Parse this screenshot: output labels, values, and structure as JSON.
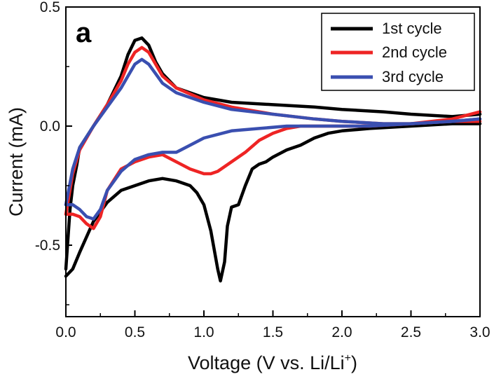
{
  "panel_label": "a",
  "chart_data": {
    "type": "line",
    "xlabel": "Voltage (V vs. Li/Li+)",
    "xlabel_main": "Voltage (V vs. Li/Li",
    "xlabel_sup": "+",
    "xlabel_tail": ")",
    "ylabel": "Current (mA)",
    "xlim": [
      0.0,
      3.0
    ],
    "ylim": [
      -0.8,
      0.5
    ],
    "xticks": [
      "0.0",
      "0.5",
      "1.0",
      "1.5",
      "2.0",
      "2.5",
      "3.0"
    ],
    "xtick_values": [
      0.0,
      0.5,
      1.0,
      1.5,
      2.0,
      2.5,
      3.0
    ],
    "yticks": [
      "-0.5",
      "0.0",
      "0.5"
    ],
    "ytick_values": [
      -0.5,
      0.0,
      0.5
    ],
    "grid": false,
    "legend_position": "top-right",
    "series": [
      {
        "name": "1st cycle",
        "color": "#000000",
        "cathodic": [
          [
            3.0,
            0.01
          ],
          [
            2.8,
            0.01
          ],
          [
            2.5,
            0.0
          ],
          [
            2.2,
            -0.01
          ],
          [
            2.0,
            -0.02
          ],
          [
            1.9,
            -0.03
          ],
          [
            1.8,
            -0.05
          ],
          [
            1.7,
            -0.08
          ],
          [
            1.6,
            -0.1
          ],
          [
            1.5,
            -0.13
          ],
          [
            1.45,
            -0.15
          ],
          [
            1.4,
            -0.16
          ],
          [
            1.35,
            -0.18
          ],
          [
            1.3,
            -0.25
          ],
          [
            1.25,
            -0.33
          ],
          [
            1.2,
            -0.34
          ],
          [
            1.17,
            -0.42
          ],
          [
            1.15,
            -0.57
          ],
          [
            1.12,
            -0.65
          ],
          [
            1.1,
            -0.6
          ],
          [
            1.05,
            -0.44
          ],
          [
            1.0,
            -0.33
          ],
          [
            0.95,
            -0.28
          ],
          [
            0.9,
            -0.25
          ],
          [
            0.8,
            -0.23
          ],
          [
            0.7,
            -0.22
          ],
          [
            0.6,
            -0.23
          ],
          [
            0.5,
            -0.25
          ],
          [
            0.4,
            -0.27
          ],
          [
            0.3,
            -0.32
          ],
          [
            0.2,
            -0.4
          ],
          [
            0.1,
            -0.53
          ],
          [
            0.05,
            -0.6
          ],
          [
            0.0,
            -0.63
          ]
        ],
        "anodic": [
          [
            0.0,
            -0.6
          ],
          [
            0.03,
            -0.35
          ],
          [
            0.05,
            -0.25
          ],
          [
            0.08,
            -0.16
          ],
          [
            0.1,
            -0.09
          ],
          [
            0.2,
            0.0
          ],
          [
            0.3,
            0.09
          ],
          [
            0.4,
            0.21
          ],
          [
            0.45,
            0.3
          ],
          [
            0.5,
            0.36
          ],
          [
            0.55,
            0.37
          ],
          [
            0.6,
            0.34
          ],
          [
            0.65,
            0.27
          ],
          [
            0.7,
            0.22
          ],
          [
            0.8,
            0.16
          ],
          [
            1.0,
            0.12
          ],
          [
            1.2,
            0.1
          ],
          [
            1.5,
            0.09
          ],
          [
            1.8,
            0.08
          ],
          [
            2.0,
            0.07
          ],
          [
            2.3,
            0.06
          ],
          [
            2.5,
            0.05
          ],
          [
            2.8,
            0.04
          ],
          [
            3.0,
            0.05
          ]
        ]
      },
      {
        "name": "2nd cycle",
        "color": "#ee2424",
        "cathodic": [
          [
            3.0,
            0.06
          ],
          [
            2.8,
            0.03
          ],
          [
            2.5,
            0.01
          ],
          [
            2.2,
            0.0
          ],
          [
            2.0,
            0.0
          ],
          [
            1.8,
            0.0
          ],
          [
            1.7,
            0.0
          ],
          [
            1.6,
            -0.01
          ],
          [
            1.5,
            -0.03
          ],
          [
            1.4,
            -0.06
          ],
          [
            1.3,
            -0.11
          ],
          [
            1.2,
            -0.15
          ],
          [
            1.1,
            -0.19
          ],
          [
            1.05,
            -0.2
          ],
          [
            1.0,
            -0.2
          ],
          [
            0.9,
            -0.18
          ],
          [
            0.8,
            -0.15
          ],
          [
            0.7,
            -0.12
          ],
          [
            0.6,
            -0.13
          ],
          [
            0.5,
            -0.15
          ],
          [
            0.4,
            -0.18
          ],
          [
            0.3,
            -0.27
          ],
          [
            0.25,
            -0.38
          ],
          [
            0.2,
            -0.43
          ],
          [
            0.15,
            -0.41
          ],
          [
            0.1,
            -0.38
          ],
          [
            0.05,
            -0.37
          ],
          [
            0.0,
            -0.37
          ]
        ],
        "anodic": [
          [
            0.0,
            -0.37
          ],
          [
            0.05,
            -0.2
          ],
          [
            0.1,
            -0.1
          ],
          [
            0.2,
            0.0
          ],
          [
            0.3,
            0.09
          ],
          [
            0.4,
            0.19
          ],
          [
            0.45,
            0.26
          ],
          [
            0.5,
            0.31
          ],
          [
            0.55,
            0.33
          ],
          [
            0.6,
            0.31
          ],
          [
            0.65,
            0.26
          ],
          [
            0.7,
            0.21
          ],
          [
            0.8,
            0.16
          ],
          [
            1.0,
            0.11
          ],
          [
            1.2,
            0.08
          ],
          [
            1.5,
            0.05
          ],
          [
            1.8,
            0.03
          ],
          [
            2.0,
            0.02
          ],
          [
            2.3,
            0.01
          ],
          [
            2.5,
            0.01
          ],
          [
            2.8,
            0.02
          ],
          [
            3.0,
            0.02
          ]
        ]
      },
      {
        "name": "3rd cycle",
        "color": "#3a4fb0",
        "cathodic": [
          [
            3.0,
            0.03
          ],
          [
            2.8,
            0.02
          ],
          [
            2.5,
            0.01
          ],
          [
            2.2,
            0.0
          ],
          [
            2.0,
            0.0
          ],
          [
            1.8,
            0.0
          ],
          [
            1.6,
            0.0
          ],
          [
            1.4,
            -0.01
          ],
          [
            1.2,
            -0.02
          ],
          [
            1.0,
            -0.05
          ],
          [
            0.9,
            -0.08
          ],
          [
            0.8,
            -0.11
          ],
          [
            0.7,
            -0.11
          ],
          [
            0.6,
            -0.12
          ],
          [
            0.5,
            -0.14
          ],
          [
            0.4,
            -0.19
          ],
          [
            0.3,
            -0.27
          ],
          [
            0.25,
            -0.35
          ],
          [
            0.2,
            -0.39
          ],
          [
            0.15,
            -0.38
          ],
          [
            0.1,
            -0.35
          ],
          [
            0.05,
            -0.33
          ],
          [
            0.0,
            -0.33
          ]
        ],
        "anodic": [
          [
            0.0,
            -0.33
          ],
          [
            0.05,
            -0.18
          ],
          [
            0.1,
            -0.09
          ],
          [
            0.2,
            0.0
          ],
          [
            0.3,
            0.08
          ],
          [
            0.4,
            0.16
          ],
          [
            0.45,
            0.21
          ],
          [
            0.5,
            0.26
          ],
          [
            0.55,
            0.28
          ],
          [
            0.6,
            0.26
          ],
          [
            0.65,
            0.22
          ],
          [
            0.7,
            0.18
          ],
          [
            0.8,
            0.14
          ],
          [
            1.0,
            0.1
          ],
          [
            1.2,
            0.07
          ],
          [
            1.5,
            0.05
          ],
          [
            1.8,
            0.03
          ],
          [
            2.0,
            0.02
          ],
          [
            2.3,
            0.01
          ],
          [
            2.5,
            0.01
          ],
          [
            2.8,
            0.02
          ],
          [
            3.0,
            0.03
          ]
        ]
      }
    ]
  }
}
